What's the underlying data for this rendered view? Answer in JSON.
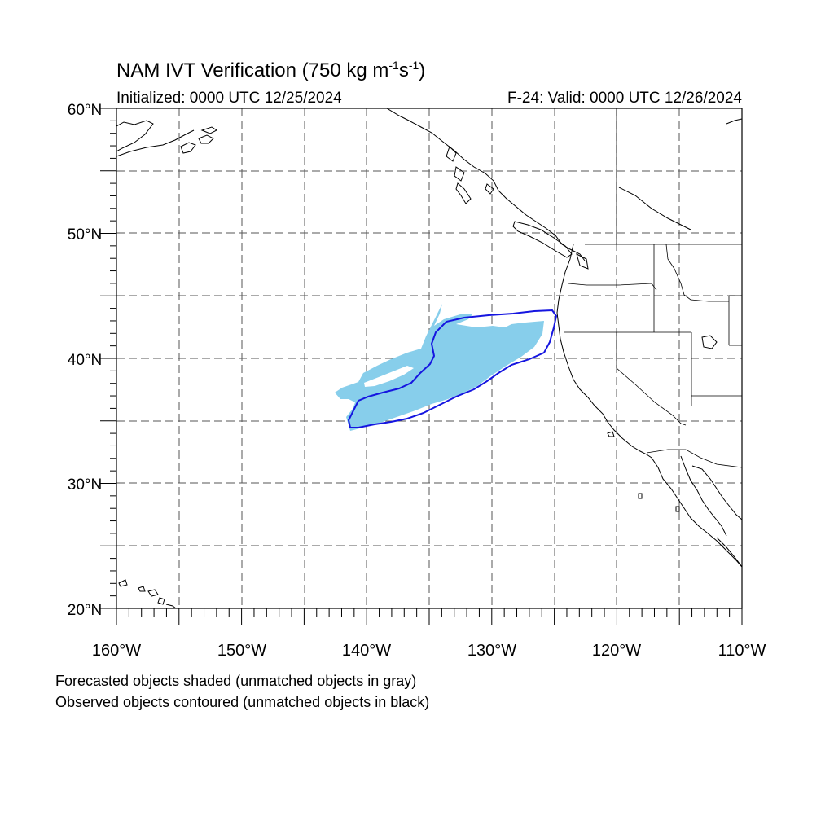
{
  "title": {
    "prefix": "NAM IVT Verification (750 kg m",
    "exp1": "-1",
    "mid": "s",
    "exp2": "-1",
    "suffix": ")"
  },
  "initialized": "Initialized: 0000 UTC 12/25/2024",
  "valid": "F-24: Valid: 0000 UTC 12/26/2024",
  "lat_labels": [
    "60°N",
    "50°N",
    "40°N",
    "30°N",
    "20°N"
  ],
  "lon_labels": [
    "160°W",
    "150°W",
    "140°W",
    "130°W",
    "120°W",
    "110°W"
  ],
  "notes": {
    "line1": "Forecasted objects shaded (unmatched objects in gray)",
    "line2": "Observed objects contoured (unmatched objects in black)"
  },
  "colors": {
    "forecast_fill": "#87ceeb",
    "observed_contour": "#1515e0",
    "coastline": "#000000",
    "grid": "#555555"
  }
}
